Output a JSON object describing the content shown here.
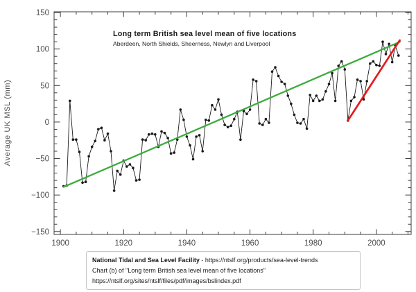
{
  "chart_data": {
    "type": "line",
    "title": "Long term British sea level mean of five locations",
    "subtitle": "Aberdeen, North Shields, Sheerness, Newlyn and Liverpool",
    "ylabel": "Average UK MSL  (mm)",
    "xlim": [
      1898,
      2011
    ],
    "ylim": [
      -154,
      151
    ],
    "grid": false,
    "legend": "none",
    "x_major_ticks": [
      1900,
      1920,
      1940,
      1960,
      1980,
      2000
    ],
    "x_major_tick_labels": [
      "1900",
      "1920",
      "1940",
      "1960",
      "1980",
      "2000"
    ],
    "x_minor_step": 5,
    "x_minor_range": [
      1900,
      2010
    ],
    "y_major_ticks": [
      -150,
      -100,
      -50,
      0,
      50,
      100,
      150
    ],
    "y_major_tick_labels": [
      "−150",
      "−100",
      "−50",
      "0",
      "50",
      "100",
      "150"
    ],
    "y_minor_step": 10,
    "series_name": "Annual mean sea level",
    "series_color": "#1a1a1a",
    "start_year": 1901,
    "values": [
      -88,
      -87,
      29,
      -24,
      -24,
      -41,
      -83,
      -82,
      -47,
      -34,
      -26,
      -10,
      -8,
      -25,
      -16,
      -40,
      -94,
      -67,
      -72,
      -53,
      -61,
      -58,
      -63,
      -80,
      -79,
      -24,
      -25,
      -17,
      -16,
      -17,
      -34,
      -13,
      -15,
      -22,
      -43,
      -42,
      -24,
      17,
      3,
      -20,
      -32,
      -51,
      -20,
      -18,
      -40,
      3,
      2,
      23,
      17,
      31,
      10,
      -4,
      -7,
      -5,
      4,
      14,
      -24,
      15,
      11,
      17,
      58,
      56,
      -2,
      -4,
      4,
      -1,
      69,
      75,
      63,
      55,
      52,
      36,
      25,
      10,
      -1,
      -2,
      4,
      -9,
      37,
      29,
      36,
      29,
      31,
      42,
      52,
      67,
      29,
      77,
      83,
      72,
      2,
      29,
      34,
      58,
      56,
      31,
      56,
      80,
      83,
      78,
      77,
      110,
      93,
      107,
      82,
      105,
      91
    ],
    "trend_lines": [
      {
        "name": "long-term-trend",
        "color": "#3cab3c",
        "x1": 1901,
        "y1": -89,
        "x2": 2007.5,
        "y2": 110
      },
      {
        "name": "recent-trend",
        "color": "#e41a1c",
        "x1": 1991,
        "y1": 2,
        "x2": 2007.4,
        "y2": 112
      }
    ]
  },
  "footer": {
    "source_bold": "National Tidal and Sea Level Facility",
    "source_rest": " - https://ntslf.org/products/sea-level-trends",
    "line2": "Chart (b) of \"Long term British sea level mean of five locations\"",
    "line3": "https://ntslf.org/sites/ntslf/files/pdf/images/bslindex.pdf"
  }
}
